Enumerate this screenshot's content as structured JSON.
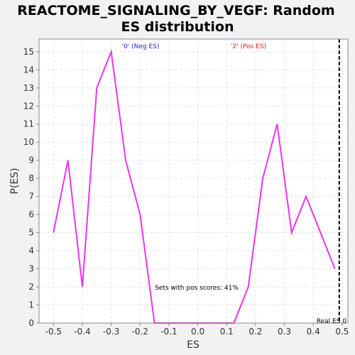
{
  "chart_data": {
    "type": "line",
    "title_lines": [
      "REACTOME_SIGNALING_BY_VEGF: Random",
      "ES distribution"
    ],
    "xlabel": "ES",
    "ylabel": "P(ES)",
    "xlim": [
      -0.55,
      0.52
    ],
    "ylim": [
      0,
      15.7
    ],
    "xticks": [
      "-0.5",
      "-0.4",
      "-0.3",
      "-0.2",
      "-0.1",
      "0.0",
      "0.1",
      "0.2",
      "0.3",
      "0.4",
      "0.5"
    ],
    "xtick_values": [
      -0.5,
      -0.4,
      -0.3,
      -0.2,
      -0.1,
      0.0,
      0.1,
      0.2,
      0.3,
      0.4,
      0.5
    ],
    "yticks": [
      "0",
      "1",
      "2",
      "3",
      "4",
      "5",
      "6",
      "7",
      "8",
      "9",
      "10",
      "11",
      "12",
      "13",
      "14",
      "15"
    ],
    "ytick_values": [
      0,
      1,
      2,
      3,
      4,
      5,
      6,
      7,
      8,
      9,
      10,
      11,
      12,
      13,
      14,
      15
    ],
    "grid": true,
    "series": [
      {
        "color": "#ee33ee",
        "x": [
          -0.5,
          -0.45,
          -0.4,
          -0.35,
          -0.3,
          -0.25,
          -0.2,
          -0.15,
          -0.1,
          -0.05,
          0.0,
          0.05,
          0.1,
          0.125,
          0.175,
          0.225,
          0.275,
          0.325,
          0.375,
          0.425,
          0.475
        ],
        "y": [
          5,
          9,
          2,
          13,
          15,
          9,
          6,
          0,
          0,
          0,
          0,
          0,
          0,
          0,
          2,
          8,
          11,
          5,
          7,
          5,
          3
        ]
      }
    ],
    "real_es": {
      "x": 0.49,
      "label": "Real ES 0",
      "color": "#000000"
    },
    "annotations": {
      "neg_label": "'0' (Neg ES)",
      "neg_color": "#2222cc",
      "pos_label": "'2' (Pos ES)",
      "pos_color": "#dd2222",
      "pos_scores": "Sets with pos scores: 41%"
    }
  }
}
